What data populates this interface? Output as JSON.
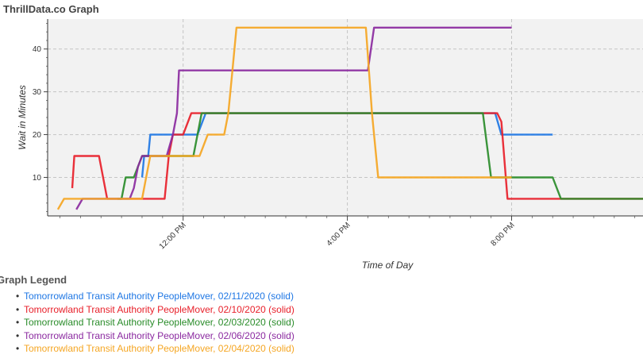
{
  "chart_data": {
    "type": "line",
    "title": "ThrillData.co Graph",
    "xlabel": "Time of Day",
    "ylabel": "Wait in Minutes",
    "x_ticks": [
      "12:00 PM",
      "4:00 PM",
      "8:00 PM"
    ],
    "y_ticks": [
      10,
      20,
      30,
      40
    ],
    "x_unit": "hour of day",
    "xlim": [
      8.7,
      23.2
    ],
    "ylim": [
      1,
      47
    ],
    "grid": true,
    "series": [
      {
        "name": "Tomorrowland Transit Authority PeopleMover, 02/11/2020 (solid)",
        "color": "#1f77e4",
        "points": [
          [
            11.0,
            10
          ],
          [
            11.05,
            15
          ],
          [
            11.15,
            15
          ],
          [
            11.2,
            20
          ],
          [
            11.9,
            20
          ],
          [
            12.0,
            20
          ],
          [
            12.35,
            20
          ],
          [
            12.55,
            25
          ],
          [
            13.0,
            25
          ],
          [
            17.0,
            25
          ],
          [
            19.5,
            25
          ],
          [
            19.6,
            25
          ],
          [
            19.75,
            20
          ],
          [
            20.0,
            20
          ],
          [
            21.0,
            20
          ],
          [
            21.0,
            20
          ]
        ]
      },
      {
        "name": "Tomorrowland Transit Authority PeopleMover, 02/10/2020 (solid)",
        "color": "#e8202a",
        "points": [
          [
            9.3,
            7.5
          ],
          [
            9.35,
            15
          ],
          [
            9.95,
            15
          ],
          [
            10.15,
            5
          ],
          [
            11.0,
            5
          ],
          [
            11.35,
            5
          ],
          [
            11.55,
            5
          ],
          [
            11.6,
            10
          ],
          [
            11.65,
            15
          ],
          [
            11.75,
            20
          ],
          [
            12.0,
            20
          ],
          [
            12.2,
            25
          ],
          [
            13.0,
            25
          ],
          [
            16.0,
            25
          ],
          [
            19.55,
            25
          ],
          [
            19.65,
            25
          ],
          [
            19.75,
            23
          ],
          [
            19.9,
            5
          ],
          [
            20.0,
            5
          ],
          [
            23.2,
            5
          ]
        ]
      },
      {
        "name": "Tomorrowland Transit Authority PeopleMover, 02/03/2020 (solid)",
        "color": "#2a8c2a",
        "points": [
          [
            10.4,
            5
          ],
          [
            10.5,
            5
          ],
          [
            10.6,
            10
          ],
          [
            10.8,
            10
          ],
          [
            11.0,
            15
          ],
          [
            11.3,
            15
          ],
          [
            11.6,
            15
          ],
          [
            12.25,
            15
          ],
          [
            12.35,
            20
          ],
          [
            12.45,
            25
          ],
          [
            13.0,
            25
          ],
          [
            16.0,
            25
          ],
          [
            19.3,
            25
          ],
          [
            19.5,
            10
          ],
          [
            20.0,
            10
          ],
          [
            20.9,
            10
          ],
          [
            21.0,
            10
          ],
          [
            21.2,
            5
          ],
          [
            22.0,
            5
          ],
          [
            23.2,
            5
          ]
        ]
      },
      {
        "name": "Tomorrowland Transit Authority PeopleMover, 02/06/2020 (solid)",
        "color": "#8b2aa0",
        "points": [
          [
            9.4,
            2.5
          ],
          [
            9.55,
            5
          ],
          [
            10.0,
            5
          ],
          [
            10.7,
            5
          ],
          [
            10.8,
            7.5
          ],
          [
            10.9,
            12.5
          ],
          [
            11.0,
            15
          ],
          [
            11.2,
            15
          ],
          [
            11.6,
            15
          ],
          [
            11.75,
            20
          ],
          [
            11.85,
            25
          ],
          [
            11.9,
            35
          ],
          [
            12.0,
            35
          ],
          [
            13.0,
            35
          ],
          [
            16.5,
            35
          ],
          [
            16.65,
            45
          ],
          [
            17.0,
            45
          ],
          [
            18.0,
            45
          ],
          [
            20.0,
            45
          ]
        ]
      },
      {
        "name": "Tomorrowland Transit Authority PeopleMover, 02/04/2020 (solid)",
        "color": "#f5a623",
        "points": [
          [
            8.95,
            2.5
          ],
          [
            9.1,
            5
          ],
          [
            9.5,
            5
          ],
          [
            10.0,
            5
          ],
          [
            10.5,
            5
          ],
          [
            11.0,
            5
          ],
          [
            11.1,
            10
          ],
          [
            11.2,
            15
          ],
          [
            11.5,
            15
          ],
          [
            12.0,
            15
          ],
          [
            12.2,
            15
          ],
          [
            12.4,
            15
          ],
          [
            12.6,
            20
          ],
          [
            13.0,
            20
          ],
          [
            13.1,
            25
          ],
          [
            13.2,
            35
          ],
          [
            13.3,
            45
          ],
          [
            14.0,
            45
          ],
          [
            15.0,
            45
          ],
          [
            16.45,
            45
          ],
          [
            16.6,
            25
          ],
          [
            16.75,
            10
          ],
          [
            17.0,
            10
          ],
          [
            19.0,
            10
          ],
          [
            20.0,
            10
          ]
        ]
      }
    ]
  },
  "legend": {
    "title": "Graph Legend",
    "items": [
      {
        "label": "Tomorrowland Transit Authority PeopleMover, 02/11/2020 (solid)",
        "color": "#1f77e4"
      },
      {
        "label": "Tomorrowland Transit Authority PeopleMover, 02/10/2020 (solid)",
        "color": "#e8202a"
      },
      {
        "label": "Tomorrowland Transit Authority PeopleMover, 02/03/2020 (solid)",
        "color": "#2a8c2a"
      },
      {
        "label": "Tomorrowland Transit Authority PeopleMover, 02/06/2020 (solid)",
        "color": "#8b2aa0"
      },
      {
        "label": "Tomorrowland Transit Authority PeopleMover, 02/04/2020 (solid)",
        "color": "#f5a623"
      }
    ]
  }
}
